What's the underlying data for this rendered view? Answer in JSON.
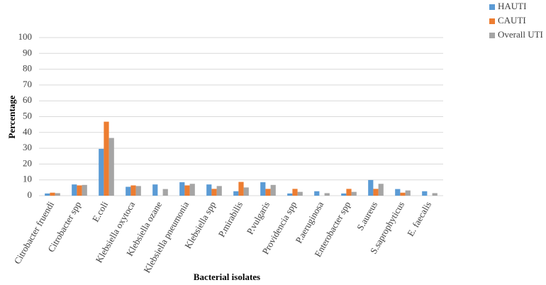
{
  "chart_data": {
    "type": "bar",
    "x_label": "Bacterial isolates",
    "y_label": "Percentage",
    "categories": [
      "Citrobacter fruendi",
      "Citrobacter spp",
      "E.coli",
      "Klebsiella oxytoca",
      "Klebsiella ozane",
      "Klebsiella pneumonia",
      "Klebsiella spp",
      "P.mirabilis",
      "P.vulgaris",
      "Providencia spp",
      "P.aeruginosa",
      "Enterobacter spp",
      "S.aureus",
      "S.saprophyticus",
      "E. faecalis"
    ],
    "series": [
      {
        "name": "HAUTI",
        "color": "#5b9bd5",
        "values": [
          1.4,
          7.1,
          29.6,
          5.6,
          7.1,
          8.5,
          7.1,
          2.8,
          8.5,
          1.4,
          2.8,
          1.4,
          9.9,
          4.2,
          2.8
        ]
      },
      {
        "name": "CAUTI",
        "color": "#ed7d31",
        "values": [
          1.9,
          6.5,
          46.8,
          6.5,
          0,
          6.5,
          4.3,
          8.7,
          4.3,
          4.3,
          0,
          4.3,
          4.3,
          1.9,
          0
        ]
      },
      {
        "name": "Overall UTI",
        "color": "#a5a5a5",
        "values": [
          1.6,
          6.8,
          36.5,
          6.1,
          4.2,
          7.5,
          6.1,
          5.2,
          6.8,
          2.4,
          1.6,
          2.4,
          7.5,
          3.3,
          1.6
        ]
      }
    ],
    "ylim": [
      0,
      100
    ],
    "yticks": [
      0,
      10,
      20,
      30,
      40,
      50,
      60,
      70,
      80,
      90,
      100
    ],
    "grid": true,
    "legend": "top-right"
  }
}
